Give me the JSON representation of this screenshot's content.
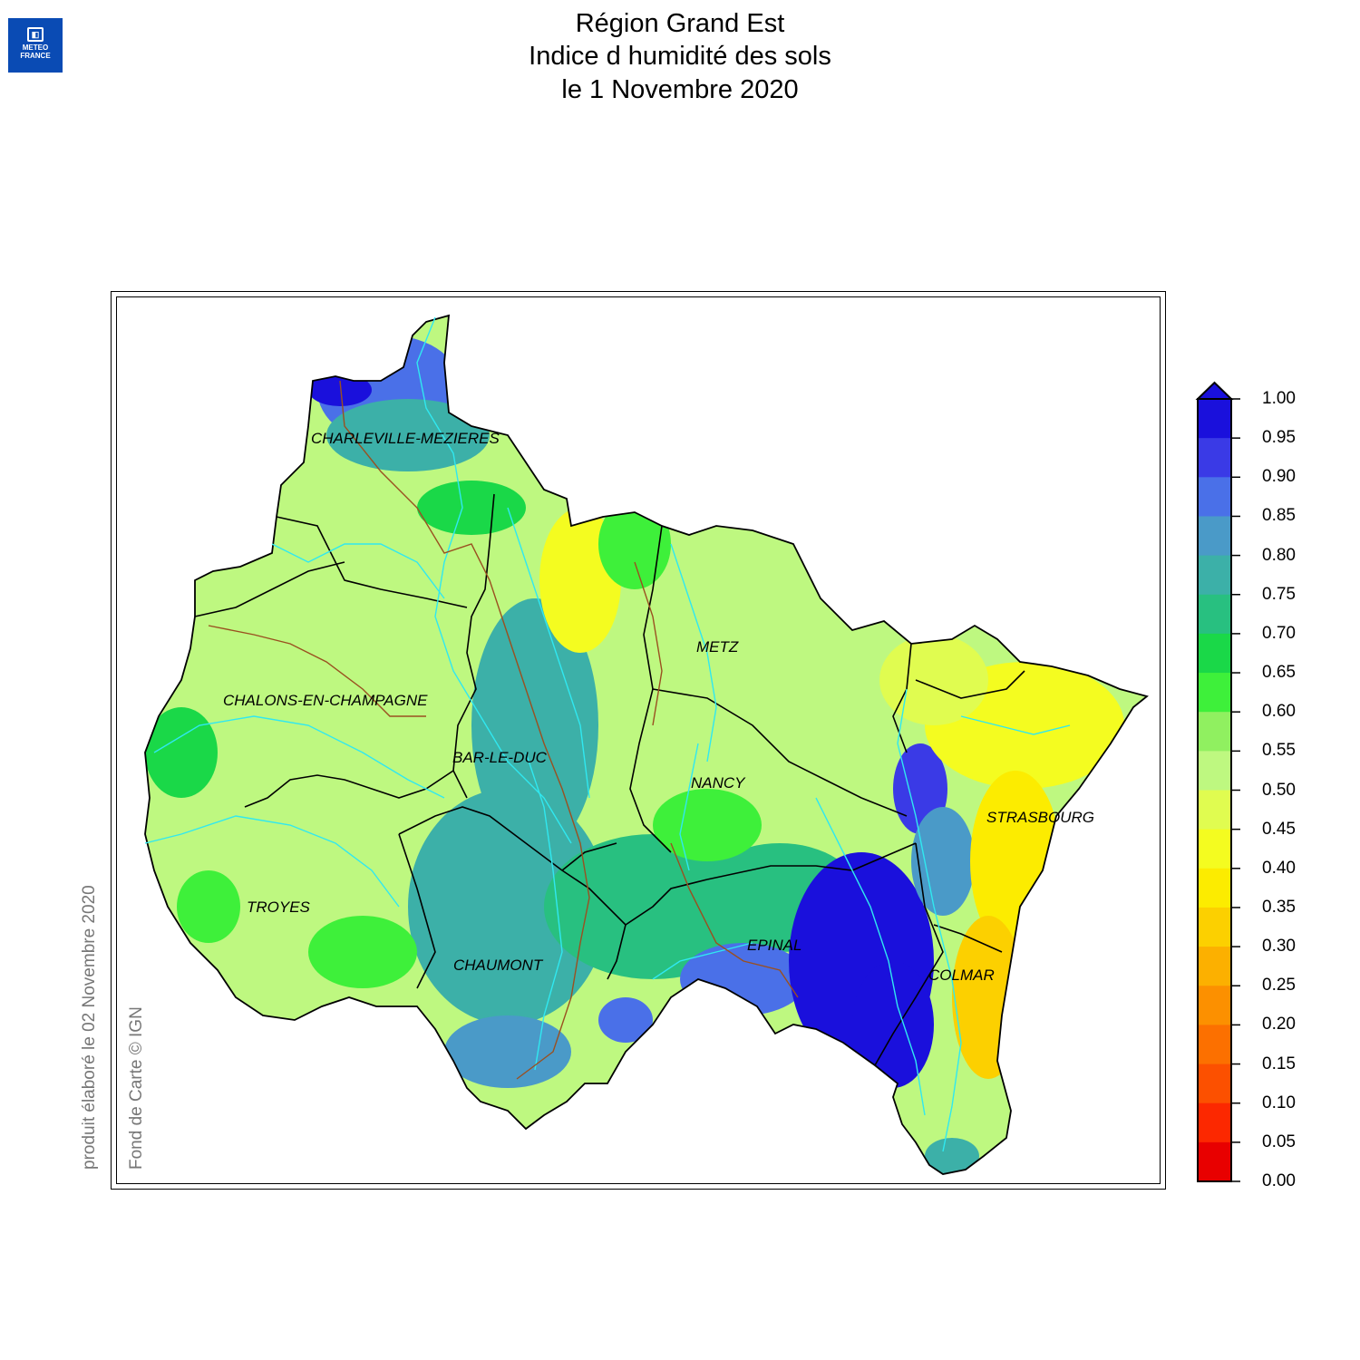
{
  "header": {
    "logo_line1": "METEO",
    "logo_line2": "FRANCE",
    "title_line1": "Région Grand Est",
    "title_line2": "Indice d humidité des sols",
    "title_line3": "le 1 Novembre 2020"
  },
  "side_notes": {
    "produced": "produit élaboré le 02 Novembre 2020",
    "credit": "Fond de Carte © IGN"
  },
  "cities": [
    {
      "name": "CHARLEVILLE-MEZIERES",
      "value": 0.8
    },
    {
      "name": "METZ",
      "value": 0.55
    },
    {
      "name": "CHALONS-EN-CHAMPAGNE",
      "value": 0.55
    },
    {
      "name": "BAR-LE-DUC",
      "value": 0.75
    },
    {
      "name": "NANCY",
      "value": 0.55
    },
    {
      "name": "STRASBOURG",
      "value": 0.4
    },
    {
      "name": "TROYES",
      "value": 0.55
    },
    {
      "name": "CHAUMONT",
      "value": 0.75
    },
    {
      "name": "EPINAL",
      "value": 0.85
    },
    {
      "name": "COLMAR",
      "value": 0.4
    }
  ],
  "legend": {
    "ticks": [
      "1.00",
      "0.95",
      "0.90",
      "0.85",
      "0.80",
      "0.75",
      "0.70",
      "0.65",
      "0.60",
      "0.55",
      "0.50",
      "0.45",
      "0.40",
      "0.35",
      "0.30",
      "0.25",
      "0.20",
      "0.15",
      "0.10",
      "0.05",
      "0.00"
    ],
    "colors_top_to_bottom": [
      "#1a10dc",
      "#3a3ae6",
      "#4a70e8",
      "#4a9ac8",
      "#3cb0a8",
      "#28c080",
      "#1ad848",
      "#3ef03a",
      "#90f060",
      "#bef880",
      "#e0fc50",
      "#f4fc20",
      "#fcec00",
      "#fcd000",
      "#fcb000",
      "#fc9000",
      "#fc7000",
      "#fc5000",
      "#fc2800",
      "#e80000"
    ],
    "overflow_color": "#1a10dc"
  },
  "colors": {
    "boundary": "#000000",
    "rivers": "#30e8f0",
    "canals": "#9a5020"
  }
}
